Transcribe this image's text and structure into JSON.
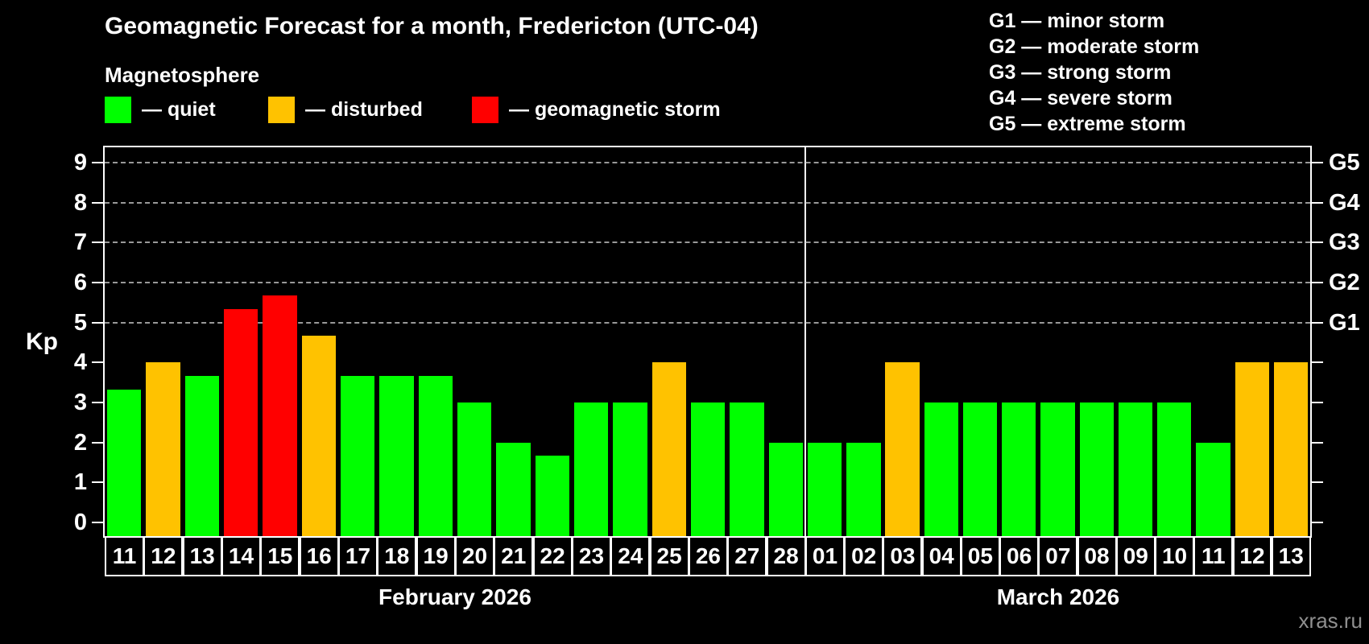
{
  "title": "Geomagnetic Forecast for a month, Fredericton (UTC-04)",
  "subtitle": "Magnetosphere",
  "colors": {
    "quiet": "#00ff00",
    "disturbed": "#ffc200",
    "storm": "#ff0000",
    "axis": "#ffffff",
    "grid": "#999999",
    "watermark": "#909090"
  },
  "legend": {
    "items": [
      {
        "label": "— quiet",
        "level": "quiet"
      },
      {
        "label": "— disturbed",
        "level": "disturbed"
      },
      {
        "label": "— geomagnetic storm",
        "level": "storm"
      }
    ]
  },
  "g_scale_legend": [
    "G1 — minor storm",
    "G2 — moderate storm",
    "G3 — strong storm",
    "G4 — severe storm",
    "G5 — extreme storm"
  ],
  "axis": {
    "y_label": "Kp",
    "y_ticks": [
      0,
      1,
      2,
      3,
      4,
      5,
      6,
      7,
      8,
      9
    ],
    "g_ticks": [
      {
        "label": "G1",
        "kp": 5
      },
      {
        "label": "G2",
        "kp": 6
      },
      {
        "label": "G3",
        "kp": 7
      },
      {
        "label": "G4",
        "kp": 8
      },
      {
        "label": "G5",
        "kp": 9
      }
    ]
  },
  "watermark": "xras.ru",
  "chart_data": {
    "type": "bar",
    "title": "Geomagnetic Forecast for a month, Fredericton (UTC-04)",
    "xlabel": "",
    "ylabel": "Kp",
    "ylim": [
      0,
      9
    ],
    "grid": "dashed horizontal at Kp 5-9 (G1-G5 levels)",
    "legend_position": "top",
    "months": [
      {
        "label": "February 2026",
        "days": [
          {
            "day": "11",
            "kp": 3.33,
            "level": "quiet"
          },
          {
            "day": "12",
            "kp": 4.0,
            "level": "disturbed"
          },
          {
            "day": "13",
            "kp": 3.67,
            "level": "quiet"
          },
          {
            "day": "14",
            "kp": 5.33,
            "level": "storm"
          },
          {
            "day": "15",
            "kp": 5.67,
            "level": "storm"
          },
          {
            "day": "16",
            "kp": 4.67,
            "level": "disturbed"
          },
          {
            "day": "17",
            "kp": 3.67,
            "level": "quiet"
          },
          {
            "day": "18",
            "kp": 3.67,
            "level": "quiet"
          },
          {
            "day": "19",
            "kp": 3.67,
            "level": "quiet"
          },
          {
            "day": "20",
            "kp": 3.0,
            "level": "quiet"
          },
          {
            "day": "21",
            "kp": 2.0,
            "level": "quiet"
          },
          {
            "day": "22",
            "kp": 1.67,
            "level": "quiet"
          },
          {
            "day": "23",
            "kp": 3.0,
            "level": "quiet"
          },
          {
            "day": "24",
            "kp": 3.0,
            "level": "quiet"
          },
          {
            "day": "25",
            "kp": 4.0,
            "level": "disturbed"
          },
          {
            "day": "26",
            "kp": 3.0,
            "level": "quiet"
          },
          {
            "day": "27",
            "kp": 3.0,
            "level": "quiet"
          },
          {
            "day": "28",
            "kp": 2.0,
            "level": "quiet"
          }
        ]
      },
      {
        "label": "March 2026",
        "days": [
          {
            "day": "01",
            "kp": 2.0,
            "level": "quiet"
          },
          {
            "day": "02",
            "kp": 2.0,
            "level": "quiet"
          },
          {
            "day": "03",
            "kp": 4.0,
            "level": "disturbed"
          },
          {
            "day": "04",
            "kp": 3.0,
            "level": "quiet"
          },
          {
            "day": "05",
            "kp": 3.0,
            "level": "quiet"
          },
          {
            "day": "06",
            "kp": 3.0,
            "level": "quiet"
          },
          {
            "day": "07",
            "kp": 3.0,
            "level": "quiet"
          },
          {
            "day": "08",
            "kp": 3.0,
            "level": "quiet"
          },
          {
            "day": "09",
            "kp": 3.0,
            "level": "quiet"
          },
          {
            "day": "10",
            "kp": 3.0,
            "level": "quiet"
          },
          {
            "day": "11",
            "kp": 2.0,
            "level": "quiet"
          },
          {
            "day": "12",
            "kp": 4.0,
            "level": "disturbed"
          },
          {
            "day": "13",
            "kp": 4.0,
            "level": "disturbed"
          }
        ]
      }
    ]
  }
}
